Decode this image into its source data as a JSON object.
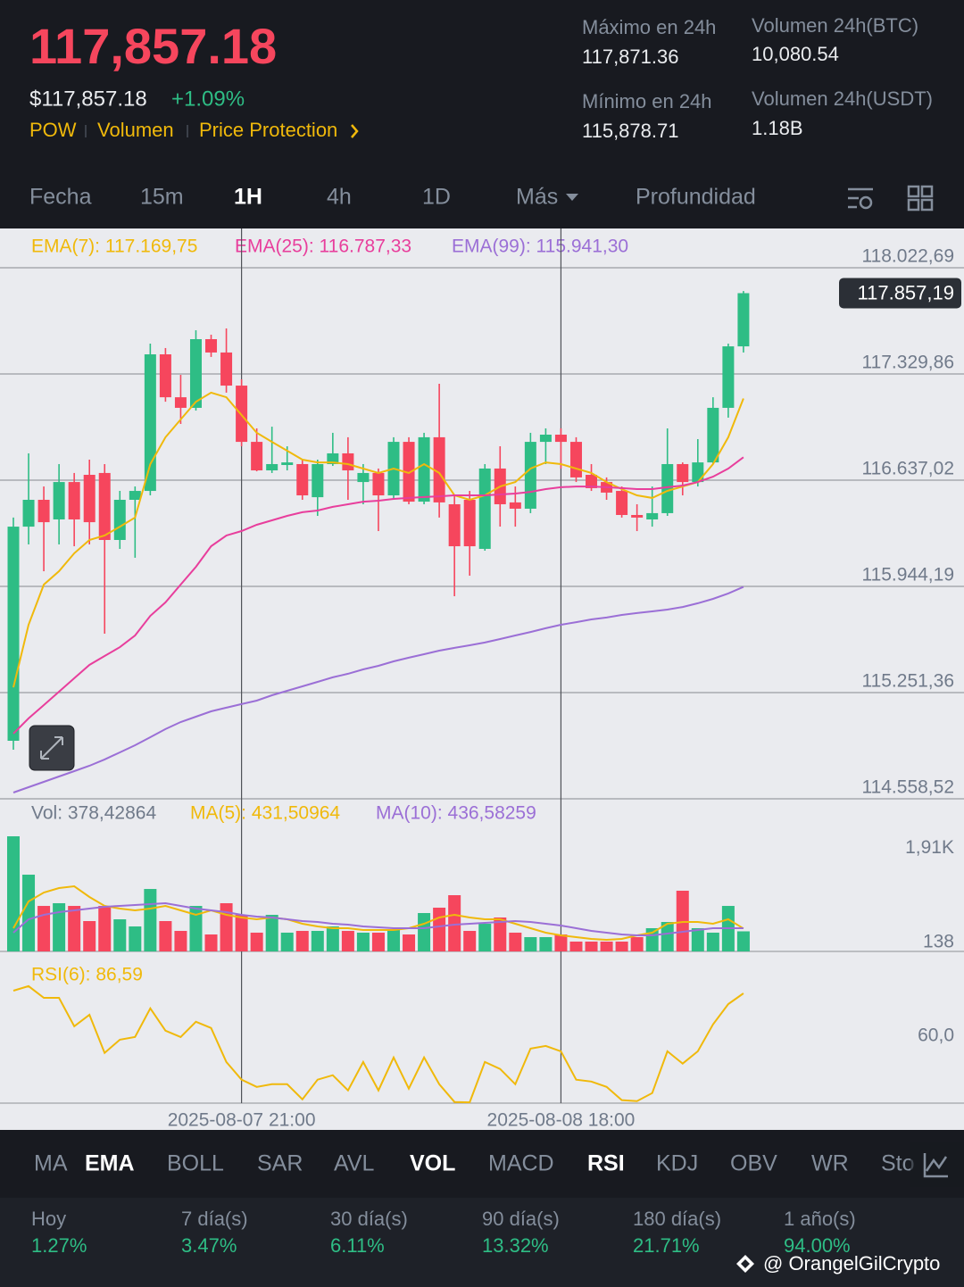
{
  "header": {
    "price": "117,857.18",
    "usd_price": "$117,857.18",
    "change": "+1.09%",
    "links": [
      "POW",
      "Volumen",
      "Price Protection"
    ],
    "stats": [
      {
        "label": "Máximo en 24h",
        "value": "117,871.36"
      },
      {
        "label": "Volumen 24h(BTC)",
        "value": "10,080.54"
      },
      {
        "label": "Mínimo en 24h",
        "value": "115,878.71"
      },
      {
        "label": "Volumen 24h(USDT)",
        "value": "1.18B"
      }
    ]
  },
  "tabs": [
    "Fecha",
    "15m",
    "1H",
    "4h",
    "1D",
    "Más",
    "Profundidad"
  ],
  "chart_data": [
    {
      "type": "candlestick",
      "up_color": "#2ebd85",
      "down_color": "#f6465d",
      "grid": true,
      "ylim": [
        114558.52,
        118279
      ],
      "yticks": [
        {
          "value": 118022.69,
          "label": "118.022,69"
        },
        {
          "value": 117329.86,
          "label": "117.329,86"
        },
        {
          "value": 116637.02,
          "label": "116.637,02"
        },
        {
          "value": 115944.19,
          "label": "115.944,19"
        },
        {
          "value": 115251.36,
          "label": "115.251,36"
        },
        {
          "value": 114558.52,
          "label": "114.558,52"
        }
      ],
      "last_price": {
        "value": 117857.19,
        "label": "117.857,19"
      },
      "open": [
        114937,
        116334,
        116509,
        116381,
        116625,
        116672,
        116684,
        116247,
        116509,
        116567,
        117458,
        117178,
        117109,
        117557,
        117470,
        117254,
        116887,
        116701,
        116736,
        116742,
        116526,
        116742,
        116812,
        116625,
        116684,
        116538,
        116887,
        116497,
        116917,
        116480,
        116509,
        116189,
        116713,
        116492,
        116451,
        116887,
        116934,
        116887,
        116672,
        116625,
        116567,
        116410,
        116381,
        116422,
        116742,
        116625,
        116753,
        117109,
        117510
      ],
      "high": [
        116393,
        116812,
        116596,
        116742,
        116684,
        116771,
        116742,
        116567,
        116596,
        117528,
        117499,
        117324,
        117615,
        117586,
        117627,
        117295,
        116975,
        116986,
        116858,
        116771,
        116771,
        116946,
        116917,
        116742,
        116713,
        116917,
        116917,
        116946,
        117266,
        116538,
        116567,
        116742,
        116858,
        116596,
        116946,
        116975,
        116975,
        116917,
        116742,
        116655,
        116596,
        116480,
        116596,
        116975,
        116753,
        116905,
        117178,
        117528,
        117871
      ],
      "low": [
        114879,
        116218,
        116043,
        116218,
        116206,
        116218,
        115636,
        116189,
        116131,
        116538,
        117149,
        117004,
        117091,
        117441,
        117208,
        116858,
        116695,
        116684,
        116701,
        116509,
        116404,
        116730,
        116509,
        116480,
        116305,
        116509,
        116480,
        116480,
        116393,
        115880,
        116014,
        116177,
        116334,
        116334,
        116422,
        116742,
        116713,
        116625,
        116567,
        116509,
        116393,
        116305,
        116334,
        116404,
        116538,
        116596,
        116742,
        117045,
        117470
      ],
      "close": [
        116334,
        116509,
        116363,
        116625,
        116381,
        116363,
        116247,
        116509,
        116567,
        117458,
        117178,
        117109,
        117557,
        117470,
        117254,
        116887,
        116701,
        116742,
        116753,
        116538,
        116742,
        116812,
        116701,
        116684,
        116538,
        116887,
        116497,
        116917,
        116492,
        116206,
        116206,
        116713,
        116480,
        116451,
        116887,
        116934,
        116887,
        116655,
        116585,
        116556,
        116410,
        116393,
        116422,
        116742,
        116625,
        116753,
        117109,
        117510,
        117857
      ],
      "series": [
        {
          "name": "EMA(7): 117.169,75",
          "color": "#f0b90b",
          "values": [
            115286,
            115694,
            115956,
            116043,
            116160,
            116247,
            116276,
            116334,
            116393,
            116742,
            116917,
            117033,
            117149,
            117208,
            117178,
            117062,
            116946,
            116887,
            116829,
            116771,
            116753,
            116753,
            116742,
            116713,
            116684,
            116713,
            116684,
            116742,
            116684,
            116538,
            116509,
            116538,
            116596,
            116625,
            116713,
            116753,
            116742,
            116713,
            116684,
            116625,
            116579,
            116538,
            116521,
            116567,
            116596,
            116625,
            116742,
            116917,
            117170
          ]
        },
        {
          "name": "EMA(25): 116.787,33",
          "color": "#e83e9c",
          "values": [
            114984,
            115083,
            115170,
            115257,
            115345,
            115432,
            115490,
            115548,
            115624,
            115752,
            115840,
            115956,
            116072,
            116206,
            116276,
            116305,
            116346,
            116375,
            116404,
            116428,
            116439,
            116463,
            116480,
            116497,
            116503,
            116515,
            116521,
            116527,
            116532,
            116538,
            116538,
            116538,
            116544,
            116550,
            116561,
            116579,
            116591,
            116596,
            116596,
            116591,
            116585,
            116579,
            116579,
            116591,
            116602,
            116625,
            116660,
            116713,
            116787
          ]
        },
        {
          "name": "EMA(99): 115.941,30",
          "color": "#9b6fd6",
          "values": [
            114599,
            114634,
            114669,
            114704,
            114739,
            114774,
            114815,
            114861,
            114908,
            114960,
            115013,
            115059,
            115094,
            115129,
            115153,
            115176,
            115199,
            115234,
            115263,
            115292,
            115321,
            115351,
            115374,
            115403,
            115426,
            115455,
            115479,
            115502,
            115525,
            115543,
            115560,
            115578,
            115601,
            115624,
            115647,
            115671,
            115694,
            115711,
            115729,
            115741,
            115758,
            115770,
            115781,
            115793,
            115810,
            115834,
            115863,
            115898,
            115941
          ]
        }
      ]
    },
    {
      "type": "bar",
      "name": "Vol: 378,42864",
      "ylim": [
        0,
        2200
      ],
      "yticks": [
        {
          "value": 1910,
          "label": "1,91K"
        },
        138
      ],
      "values": [
        2166,
        1444,
        856,
        907,
        856,
        571,
        856,
        604,
        470,
        1175,
        571,
        386,
        856,
        319,
        907,
        688,
        353,
        688,
        353,
        386,
        386,
        470,
        386,
        353,
        353,
        403,
        319,
        722,
        823,
        1058,
        386,
        520,
        638,
        353,
        269,
        269,
        319,
        185,
        185,
        185,
        185,
        269,
        437,
        554,
        1142,
        437,
        353,
        856,
        378
      ],
      "series": [
        {
          "name": "MA(5): 431,50964",
          "color": "#f0b90b",
          "values": [
            437,
            940,
            1108,
            1192,
            1226,
            1024,
            856,
            806,
            772,
            806,
            856,
            772,
            688,
            772,
            688,
            638,
            604,
            638,
            604,
            520,
            470,
            437,
            437,
            403,
            403,
            403,
            437,
            520,
            638,
            688,
            638,
            604,
            604,
            520,
            437,
            353,
            302,
            269,
            235,
            218,
            235,
            302,
            353,
            520,
            554,
            554,
            520,
            604,
            432
          ]
        },
        {
          "name": "MA(10): 436,58259",
          "color": "#9b6fd6",
          "values": [
            353,
            604,
            688,
            739,
            772,
            806,
            840,
            856,
            873,
            890,
            907,
            856,
            806,
            772,
            739,
            688,
            655,
            638,
            604,
            571,
            554,
            520,
            504,
            470,
            453,
            437,
            437,
            437,
            470,
            504,
            520,
            537,
            554,
            571,
            554,
            520,
            487,
            437,
            386,
            353,
            319,
            302,
            302,
            336,
            369,
            403,
            437,
            437,
            437
          ]
        }
      ]
    },
    {
      "type": "line",
      "ylim": [
        21,
        109.5
      ],
      "yticks": [
        {
          "value": 60,
          "label": "60,0"
        }
      ],
      "categories": [
        null,
        null,
        null,
        null,
        null,
        null,
        null,
        null,
        null,
        null,
        null,
        null,
        null,
        null,
        null,
        "2025-08-07 21:00",
        null,
        null,
        null,
        null,
        null,
        null,
        null,
        null,
        null,
        null,
        null,
        null,
        null,
        null,
        null,
        null,
        null,
        null,
        null,
        null,
        "2025-08-08 18:00",
        null,
        null,
        null,
        null,
        null,
        null,
        null,
        null,
        null,
        null,
        null,
        null
      ],
      "series": [
        {
          "name": "RSI(6): 86,59",
          "color": "#f0b90b",
          "values": [
            88.2,
            90.9,
            83.9,
            83.9,
            66.9,
            73.8,
            51.0,
            58.9,
            60.5,
            77.6,
            64.3,
            60.5,
            69.6,
            65.9,
            45.6,
            35.0,
            30.7,
            32.3,
            32.3,
            23.3,
            35.0,
            37.7,
            28.6,
            45.6,
            28.6,
            48.3,
            29.7,
            48.3,
            32.3,
            21.7,
            21.5,
            45.6,
            41.4,
            32.3,
            53.6,
            55.2,
            52.0,
            35.0,
            33.9,
            30.7,
            22.8,
            22.2,
            27.0,
            52.0,
            44.6,
            52.0,
            68.0,
            80.2,
            86.59
          ]
        }
      ]
    }
  ],
  "indicators": [
    "MA",
    "EMA",
    "BOLL",
    "SAR",
    "AVL",
    "VOL",
    "MACD",
    "RSI",
    "KDJ",
    "OBV",
    "WR",
    "Sto"
  ],
  "periods": [
    {
      "label": "Hoy",
      "value": "1.27%"
    },
    {
      "label": "7 día(s)",
      "value": "3.47%"
    },
    {
      "label": "30 día(s)",
      "value": "6.11%"
    },
    {
      "label": "90 día(s)",
      "value": "13.32%"
    },
    {
      "label": "180 día(s)",
      "value": "21.71%"
    },
    {
      "label": "1 año(s)",
      "value": "94.00%"
    }
  ],
  "watermark": "@ OrangelGilCrypto"
}
